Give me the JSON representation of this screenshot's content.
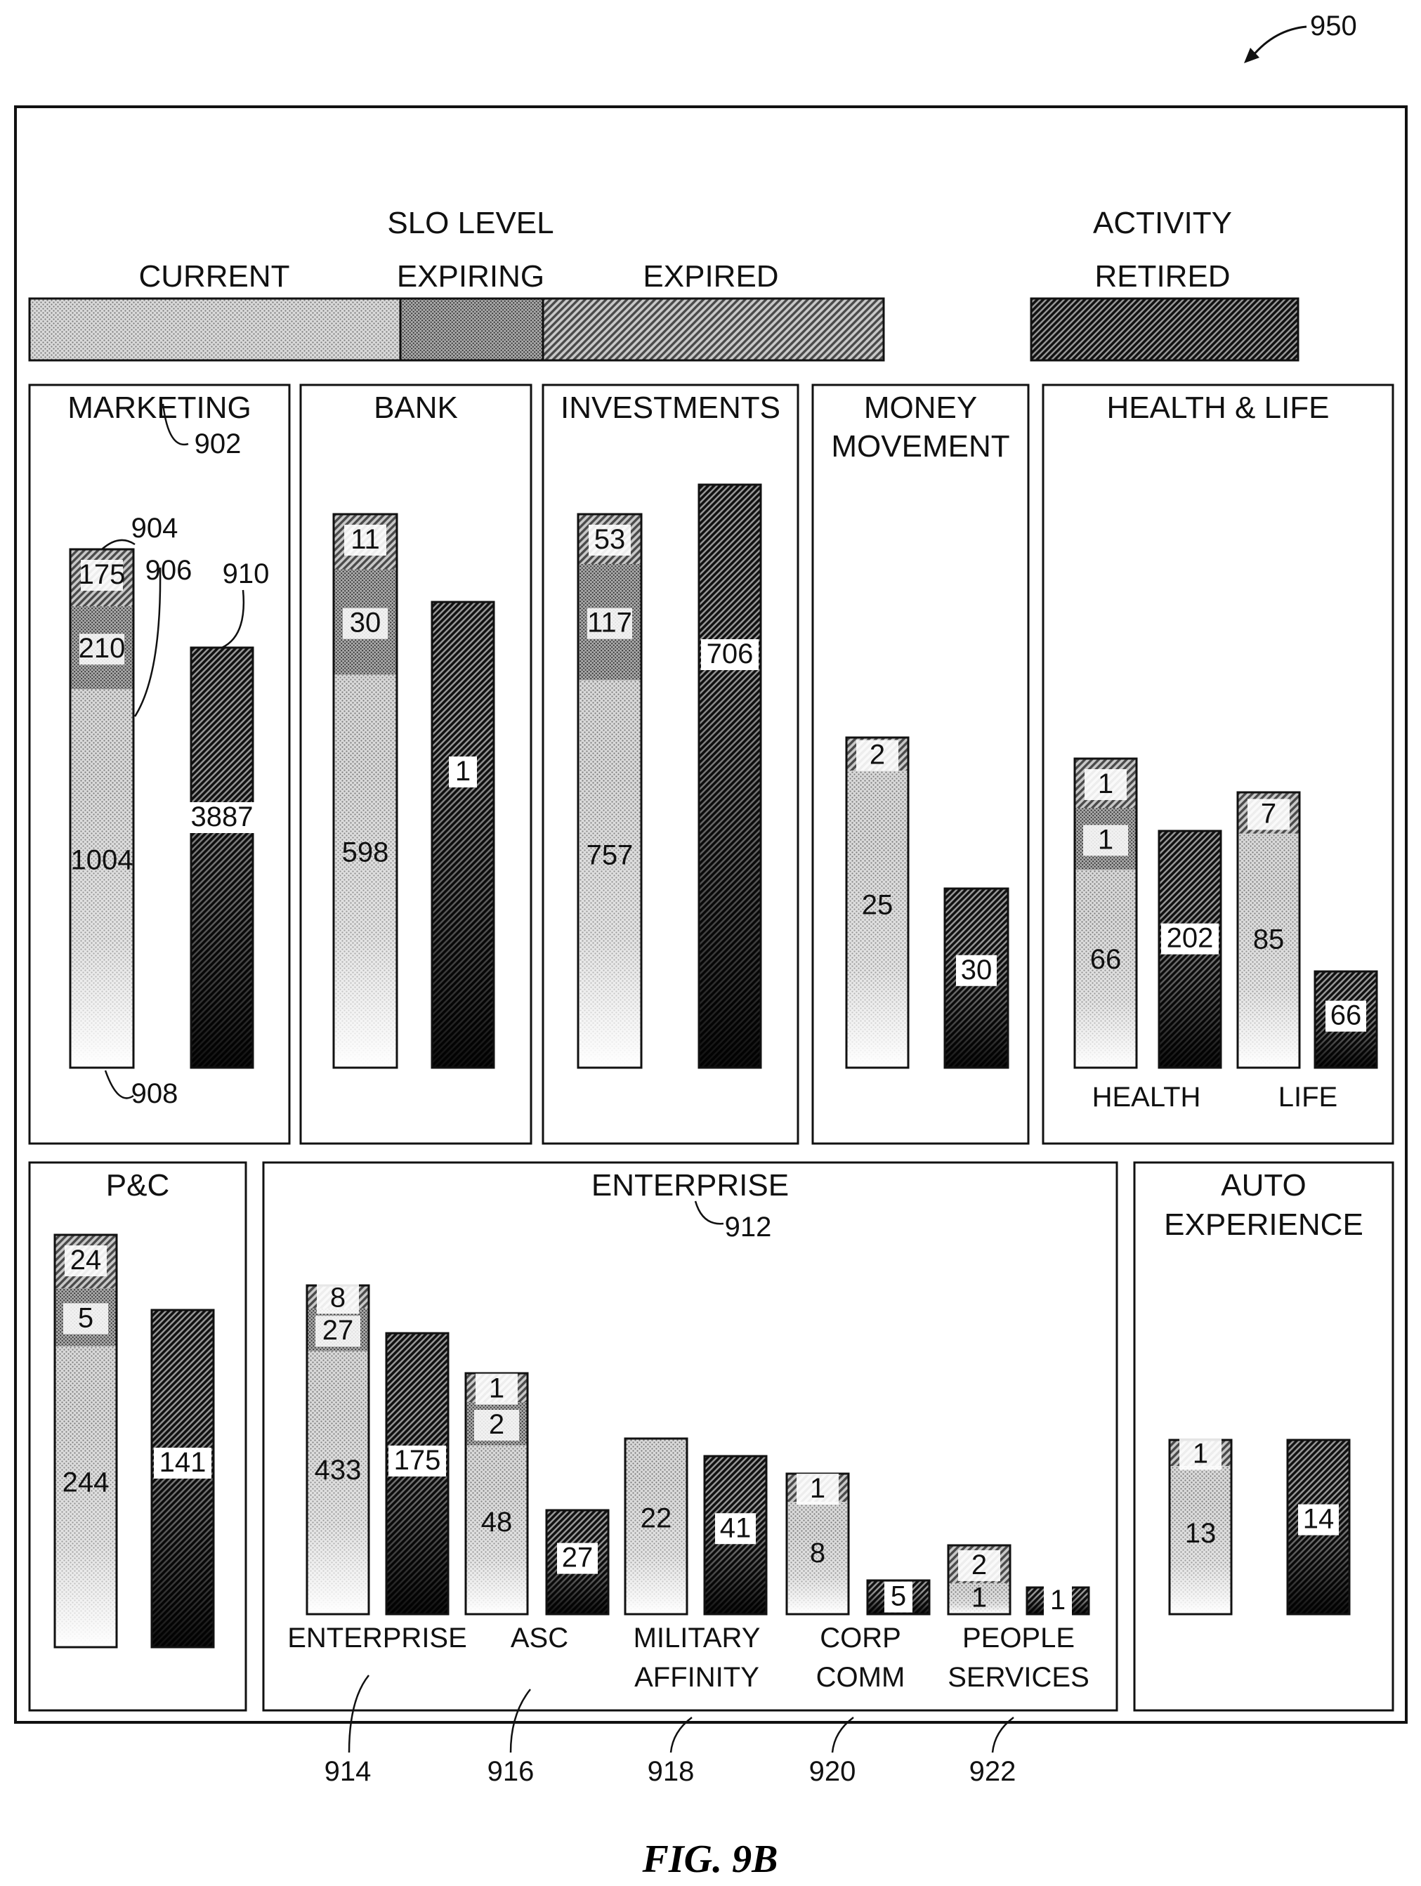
{
  "figure_ref": "950",
  "caption": "FIG. 9B",
  "legend": {
    "slo_title": "SLO LEVEL",
    "activity_title": "ACTIVITY",
    "current": "CURRENT",
    "expiring": "EXPIRING",
    "expired": "EXPIRED",
    "retired": "RETIRED"
  },
  "panels": [
    {
      "id": "marketing",
      "title": [
        "MARKETING"
      ],
      "groups": [
        {
          "label": "",
          "slo_bar": {
            "current": "1004",
            "expiring": "210",
            "expired": "175"
          },
          "retired_bar": {
            "value": "3887"
          }
        }
      ]
    },
    {
      "id": "bank",
      "title": [
        "BANK"
      ],
      "groups": [
        {
          "label": "",
          "slo_bar": {
            "current": "598",
            "expiring": "30",
            "expired": "11"
          },
          "retired_bar": {
            "value": "1"
          }
        }
      ]
    },
    {
      "id": "investments",
      "title": [
        "INVESTMENTS"
      ],
      "groups": [
        {
          "label": "",
          "slo_bar": {
            "current": "757",
            "expiring": "117",
            "expired": "53"
          },
          "retired_bar": {
            "value": "706"
          }
        }
      ]
    },
    {
      "id": "money-movement",
      "title": [
        "MONEY",
        "MOVEMENT"
      ],
      "groups": [
        {
          "label": "",
          "slo_bar": {
            "current": "25",
            "expired": "2"
          },
          "retired_bar": {
            "value": "30"
          }
        }
      ]
    },
    {
      "id": "health-life",
      "title": [
        "HEALTH & LIFE"
      ],
      "groups": [
        {
          "label": "HEALTH",
          "slo_bar": {
            "current": "66",
            "expiring": "1",
            "expired": "1"
          },
          "retired_bar": {
            "value": "202"
          }
        },
        {
          "label": "LIFE",
          "slo_bar": {
            "current": "85",
            "expired": "7"
          },
          "retired_bar": {
            "value": "66"
          }
        }
      ]
    },
    {
      "id": "p-and-c",
      "title": [
        "P&C"
      ],
      "groups": [
        {
          "label": "",
          "slo_bar": {
            "current": "244",
            "expiring": "5",
            "expired": "24"
          },
          "retired_bar": {
            "value": "141"
          }
        }
      ]
    },
    {
      "id": "enterprise",
      "title": [
        "ENTERPRISE"
      ],
      "groups": [
        {
          "label": "ENTERPRISE",
          "slo_bar": {
            "current": "433",
            "expiring": "27",
            "expired": "8"
          },
          "retired_bar": {
            "value": "175"
          }
        },
        {
          "label": "ASC",
          "slo_bar": {
            "current": "48",
            "expiring": "2",
            "expired": "1"
          },
          "retired_bar": {
            "value": "27"
          }
        },
        {
          "label": "MILITARY AFFINITY",
          "slo_bar": {
            "current": "22"
          },
          "retired_bar": {
            "value": "41"
          }
        },
        {
          "label": "CORP COMM",
          "slo_bar": {
            "current": "8",
            "expired": "1"
          },
          "retired_bar": {
            "value": "5"
          }
        },
        {
          "label": "PEOPLE SERVICES",
          "slo_bar": {
            "current": "1",
            "expired": "2"
          },
          "retired_bar": {
            "value": "1"
          }
        }
      ]
    },
    {
      "id": "auto-experience",
      "title": [
        "AUTO",
        "EXPERIENCE"
      ],
      "groups": [
        {
          "label": "",
          "slo_bar": {
            "current": "13",
            "expired": "1"
          },
          "retired_bar": {
            "value": "14"
          }
        }
      ]
    }
  ],
  "reference_numerals": {
    "marketing_panel": "902",
    "slo_bar_top": "904",
    "expiring_segment": "906",
    "slo_bar_bottom": "908",
    "retired_bar": "910",
    "enterprise_panel": "912",
    "enterprise_group": "914",
    "asc_group": "916",
    "military_affinity_group": "918",
    "corp_comm_group": "920",
    "people_services_group": "922"
  }
}
